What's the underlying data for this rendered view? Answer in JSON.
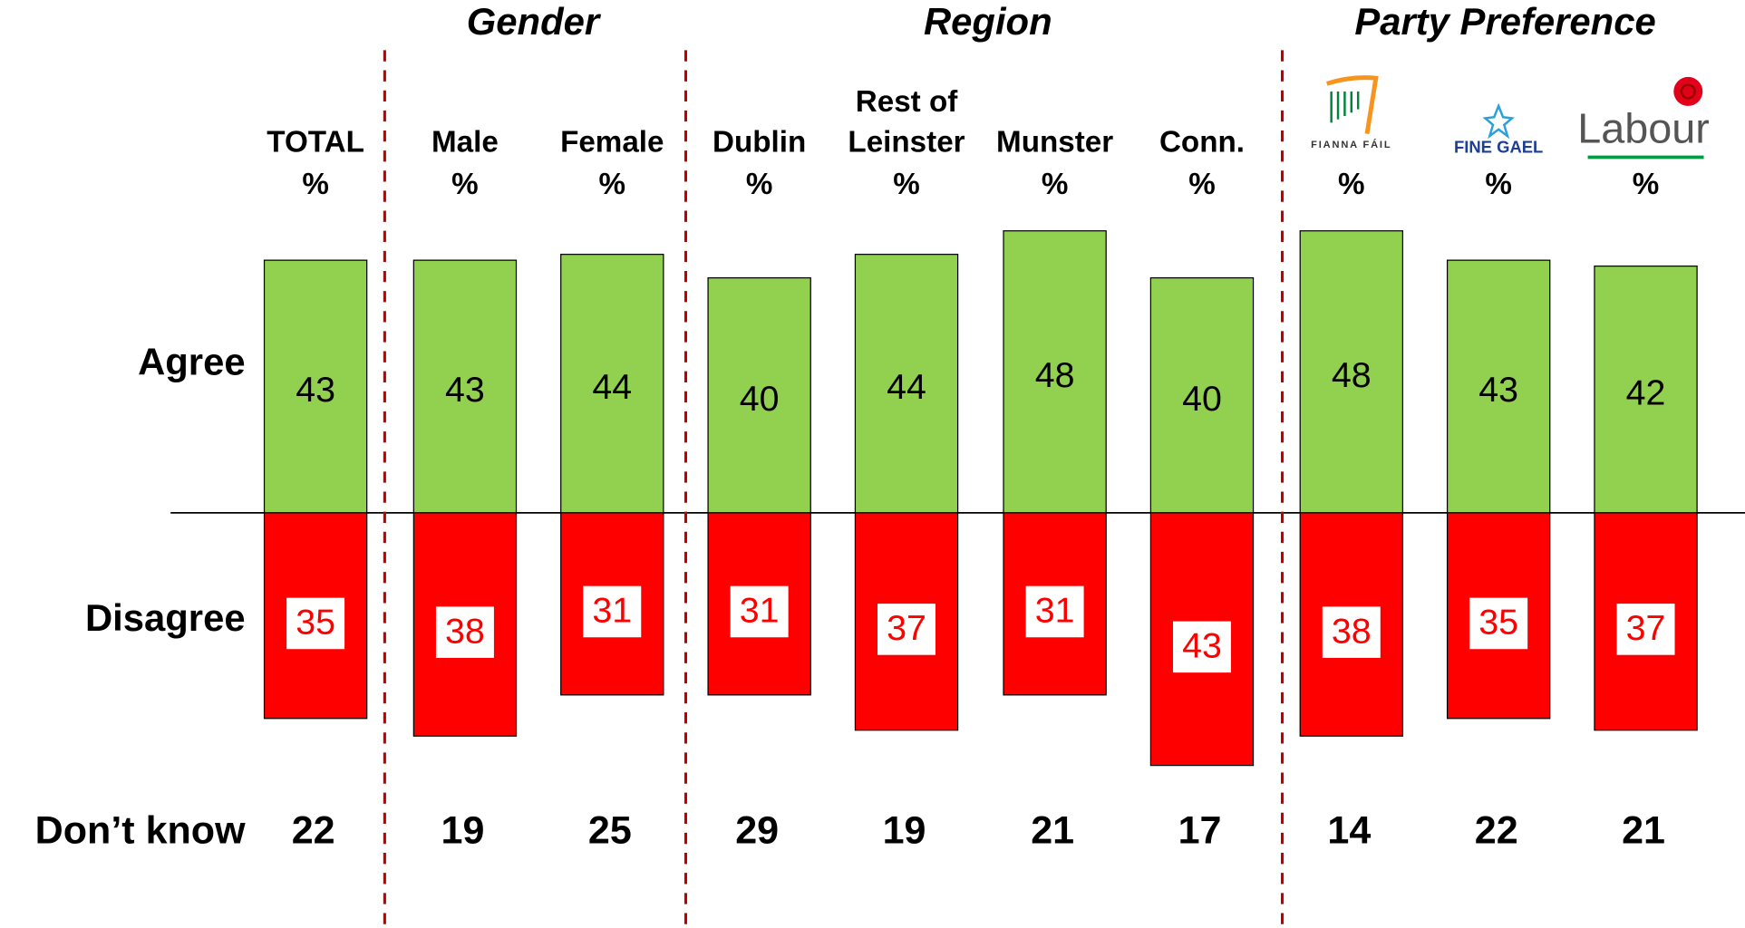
{
  "chart_data": {
    "type": "diverging_bar",
    "groups": [
      "Gender",
      "Region",
      "Party Preference"
    ],
    "categories": [
      [
        "TOTAL"
      ],
      [
        "Male"
      ],
      [
        "Female"
      ],
      [
        "Dublin"
      ],
      [
        "Rest of",
        "Leinster"
      ],
      [
        "Munster"
      ],
      [
        "Conn."
      ],
      [
        "FIANNA FÁIL"
      ],
      [
        "FINE GAEL"
      ],
      [
        "Labour"
      ]
    ],
    "unit": "%",
    "series": [
      {
        "name": "Agree",
        "color": "#92d050",
        "values": [
          43,
          43,
          44,
          40,
          44,
          48,
          40,
          48,
          43,
          42
        ]
      },
      {
        "name": "Disagree",
        "color": "#ff0000",
        "values": [
          35,
          38,
          31,
          31,
          37,
          31,
          43,
          38,
          35,
          37
        ]
      },
      {
        "name": "Don’t know",
        "values": [
          22,
          19,
          25,
          29,
          19,
          21,
          17,
          14,
          22,
          21
        ]
      }
    ]
  }
}
